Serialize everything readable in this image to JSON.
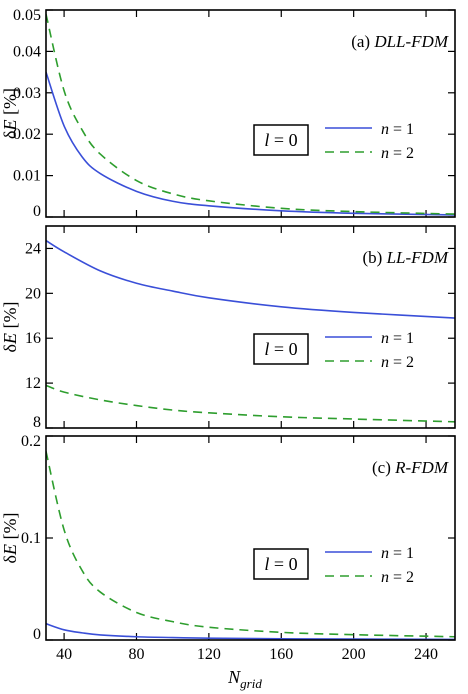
{
  "chart_data": {
    "type": "line",
    "shared": {
      "xlabel_base": "N",
      "xlabel_sub": "grid",
      "xlim": [
        30,
        256
      ],
      "xticks": [
        40,
        80,
        120,
        160,
        200,
        240
      ],
      "ylabel": "δE [%]",
      "l_box": "l = 0",
      "colors": {
        "n1": "#3a4fd8",
        "n2": "#2e9e2e"
      }
    },
    "panels": [
      {
        "label_prefix": "(a)",
        "label_method": "DLL-FDM",
        "ylim": [
          0,
          0.05
        ],
        "yticks": [
          0,
          0.01,
          0.02,
          0.03,
          0.04,
          0.05
        ],
        "ytick_labels": [
          "0",
          "0.01",
          "0.02",
          "0.03",
          "0.04",
          "0.05"
        ],
        "series": [
          {
            "name": "n = 1",
            "n_value": "1",
            "style": "solid",
            "x": [
              30,
              40,
              50,
              60,
              80,
              100,
              120,
              160,
              200,
              256
            ],
            "y": [
              0.035,
              0.022,
              0.0145,
              0.0105,
              0.0062,
              0.0038,
              0.0027,
              0.0015,
              0.0009,
              0.0005
            ]
          },
          {
            "name": "n = 2",
            "n_value": "2",
            "style": "dashed",
            "x": [
              30,
              40,
              50,
              60,
              80,
              100,
              120,
              160,
              200,
              256
            ],
            "y": [
              0.049,
              0.0305,
              0.021,
              0.0152,
              0.0088,
              0.0056,
              0.0039,
              0.0021,
              0.0013,
              0.0007
            ]
          }
        ]
      },
      {
        "label_prefix": "(b)",
        "label_method": "LL-FDM",
        "ylim": [
          8,
          26
        ],
        "yticks": [
          8,
          12,
          16,
          20,
          24
        ],
        "ytick_labels": [
          "8",
          "12",
          "16",
          "20",
          "24"
        ],
        "series": [
          {
            "name": "n = 1",
            "n_value": "1",
            "style": "solid",
            "x": [
              30,
              40,
              60,
              80,
              100,
              120,
              160,
              200,
              256
            ],
            "y": [
              24.7,
              23.7,
              22.0,
              20.9,
              20.2,
              19.6,
              18.8,
              18.3,
              17.8
            ]
          },
          {
            "name": "n = 2",
            "n_value": "2",
            "style": "dashed",
            "x": [
              30,
              40,
              60,
              80,
              100,
              120,
              160,
              200,
              256
            ],
            "y": [
              11.8,
              11.2,
              10.5,
              10.0,
              9.6,
              9.35,
              9.0,
              8.8,
              8.55
            ]
          }
        ]
      },
      {
        "label_prefix": "(c)",
        "label_method": "R-FDM",
        "ylim": [
          0,
          0.2
        ],
        "yticks": [
          0,
          0.1,
          0.2
        ],
        "ytick_labels": [
          "0",
          "0.1",
          "0.2"
        ],
        "series": [
          {
            "name": "n = 1",
            "n_value": "1",
            "style": "solid",
            "x": [
              30,
              40,
              50,
              60,
              80,
              100,
              120,
              160,
              200,
              256
            ],
            "y": [
              0.016,
              0.01,
              0.007,
              0.005,
              0.0032,
              0.0024,
              0.0018,
              0.0012,
              0.0009,
              0.0006
            ]
          },
          {
            "name": "n = 2",
            "n_value": "2",
            "style": "dashed",
            "x": [
              30,
              40,
              50,
              60,
              80,
              100,
              120,
              160,
              200,
              256
            ],
            "y": [
              0.185,
              0.108,
              0.068,
              0.047,
              0.027,
              0.018,
              0.0125,
              0.0075,
              0.0052,
              0.0032
            ]
          }
        ]
      }
    ]
  }
}
